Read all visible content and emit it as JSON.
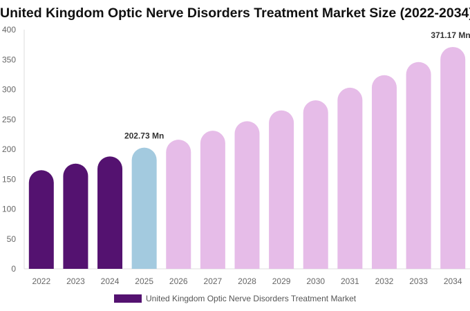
{
  "chart_data": {
    "type": "bar",
    "title": "United Kingdom Optic Nerve Disorders Treatment Market Size (2022-2034)",
    "categories": [
      "2022",
      "2023",
      "2024",
      "2025",
      "2026",
      "2027",
      "2028",
      "2029",
      "2030",
      "2031",
      "2032",
      "2033",
      "2034"
    ],
    "series": [
      {
        "name": "United Kingdom Optic Nerve Disorders Treatment Market",
        "values": [
          165,
          176,
          188,
          202.73,
          216,
          231,
          247,
          265,
          282,
          303,
          324,
          346,
          371.17
        ]
      }
    ],
    "data_labels": {
      "3": "202.73 Mn",
      "12": "371.17 Mn"
    },
    "ylim": [
      0,
      400
    ],
    "yticks": [
      0,
      50,
      100,
      150,
      200,
      250,
      300,
      350,
      400
    ],
    "grid": false,
    "legend": "bottom",
    "colors": {
      "historical": "#541270",
      "current": "#a3cadf",
      "forecast": "#e6bce8"
    }
  }
}
